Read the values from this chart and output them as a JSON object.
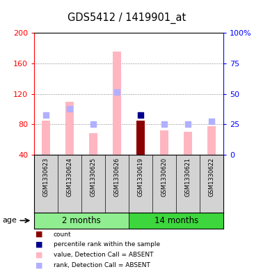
{
  "title": "GDS5412 / 1419901_at",
  "samples": [
    "GSM1330623",
    "GSM1330624",
    "GSM1330625",
    "GSM1330626",
    "GSM1330619",
    "GSM1330620",
    "GSM1330621",
    "GSM1330622"
  ],
  "value_bars": [
    85,
    110,
    68,
    175,
    85,
    72,
    70,
    78
  ],
  "rank_dots_left": [
    92,
    100,
    80,
    122,
    92,
    80,
    80,
    84
  ],
  "count_bar_index": 4,
  "count_bar_color": "#8B0000",
  "rank_dot_highlight_index": 4,
  "rank_dot_highlight_color": "#00008B",
  "value_bar_color": "#FFB6C1",
  "rank_dot_color": "#B0B0FF",
  "ylim_left": [
    40,
    200
  ],
  "ylim_right": [
    0,
    100
  ],
  "yticks_left": [
    40,
    80,
    120,
    160,
    200
  ],
  "yticks_right": [
    0,
    25,
    50,
    75,
    100
  ],
  "left_axis_color": "#FF0000",
  "right_axis_color": "#0000FF",
  "sample_bg_color": "#D3D3D3",
  "group1_color": "#90EE90",
  "group2_color": "#3DD63D",
  "legend_items": [
    {
      "color": "#8B0000",
      "label": "count",
      "marker": "s"
    },
    {
      "color": "#00008B",
      "label": "percentile rank within the sample",
      "marker": "s"
    },
    {
      "color": "#FFB6C1",
      "label": "value, Detection Call = ABSENT",
      "marker": "s"
    },
    {
      "color": "#B0B0FF",
      "label": "rank, Detection Call = ABSENT",
      "marker": "s"
    }
  ],
  "bar_width": 0.35,
  "dot_size": 6
}
